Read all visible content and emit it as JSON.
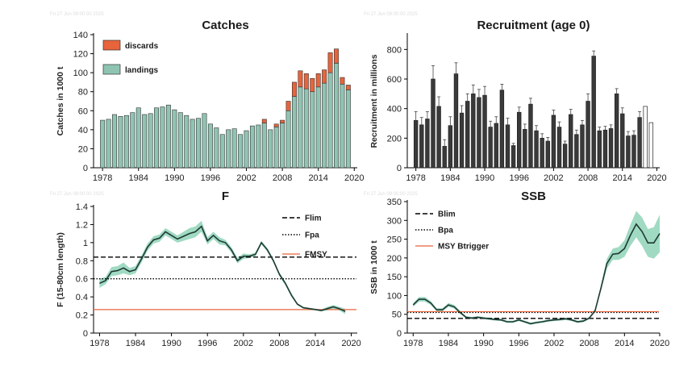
{
  "watermark": "Fri 27 Jun 09:00:00 2025",
  "chart_data": [
    {
      "id": "catches",
      "type": "bar",
      "title": "Catches",
      "ylabel": "Catches in 1000 t",
      "xlim": [
        1976.5,
        2020.5
      ],
      "ylim": [
        0,
        140
      ],
      "yticks": [
        0,
        20,
        40,
        60,
        80,
        100,
        120,
        140
      ],
      "xticks": [
        1978,
        1984,
        1990,
        1996,
        2002,
        2008,
        2014,
        2020
      ],
      "legend": "top-left",
      "colors": {
        "landings": "#8fc4b3",
        "discards": "#e8643a"
      },
      "x": [
        1978,
        1979,
        1980,
        1981,
        1982,
        1983,
        1984,
        1985,
        1986,
        1987,
        1988,
        1989,
        1990,
        1991,
        1992,
        1993,
        1994,
        1995,
        1996,
        1997,
        1998,
        1999,
        2000,
        2001,
        2002,
        2003,
        2004,
        2005,
        2006,
        2007,
        2008,
        2009,
        2010,
        2011,
        2012,
        2013,
        2014,
        2015,
        2016,
        2017,
        2018,
        2019
      ],
      "series": [
        {
          "name": "landings",
          "values": [
            50,
            51,
            56,
            54,
            55,
            58,
            63,
            56,
            57,
            63,
            64,
            66,
            61,
            58,
            55,
            51,
            52,
            57,
            46,
            42,
            35,
            40,
            41,
            35,
            39,
            44,
            45,
            47,
            40,
            43,
            47,
            60,
            75,
            85,
            83,
            80,
            85,
            89,
            100,
            110,
            88,
            82
          ]
        },
        {
          "name": "discards",
          "values": [
            0,
            0,
            0,
            0,
            0,
            0,
            0,
            0,
            0,
            0,
            0,
            0,
            0,
            0,
            0,
            0,
            0,
            0,
            0,
            0,
            0,
            0,
            0,
            0,
            0,
            0,
            0,
            4,
            0,
            3,
            3,
            10,
            15,
            17,
            16,
            14,
            14,
            14,
            21,
            15,
            7,
            5
          ]
        }
      ]
    },
    {
      "id": "recruitment",
      "type": "bar",
      "title": "Recruitment (age 0)",
      "ylabel": "Recruitment in millions",
      "xlim": [
        1976.5,
        2020.5
      ],
      "ylim": [
        0,
        900
      ],
      "yticks": [
        0,
        200,
        400,
        600,
        800
      ],
      "xticks": [
        1978,
        1984,
        1990,
        1996,
        2002,
        2008,
        2014,
        2020
      ],
      "colors": {
        "estimated": "#3a3a3a"
      },
      "x": [
        1978,
        1979,
        1980,
        1981,
        1982,
        1983,
        1984,
        1985,
        1986,
        1987,
        1988,
        1989,
        1990,
        1991,
        1992,
        1993,
        1994,
        1995,
        1996,
        1997,
        1998,
        1999,
        2000,
        2001,
        2002,
        2003,
        2004,
        2005,
        2006,
        2007,
        2008,
        2009,
        2010,
        2011,
        2012,
        2013,
        2014,
        2015,
        2016,
        2017,
        2018,
        2019
      ],
      "values": [
        320,
        290,
        330,
        600,
        415,
        145,
        285,
        635,
        370,
        450,
        500,
        475,
        490,
        275,
        300,
        525,
        290,
        150,
        375,
        260,
        430,
        250,
        200,
        180,
        355,
        275,
        160,
        360,
        225,
        290,
        450,
        755,
        250,
        255,
        265,
        500,
        365,
        215,
        220,
        340,
        415,
        305
      ],
      "upper": [
        380,
        340,
        380,
        690,
        480,
        190,
        345,
        710,
        420,
        500,
        560,
        530,
        550,
        315,
        345,
        565,
        335,
        165,
        410,
        295,
        470,
        285,
        230,
        205,
        390,
        310,
        180,
        395,
        255,
        320,
        500,
        790,
        275,
        280,
        290,
        535,
        405,
        245,
        250,
        380,
        485,
        305
      ],
      "assumed_from_year": 2018,
      "assumed_values": [
        305,
        305,
        305
      ]
    },
    {
      "id": "F",
      "type": "line",
      "title": "F",
      "ylabel": "F (15-80cm length)",
      "xlim": [
        1977,
        2021
      ],
      "ylim": [
        0,
        1.4
      ],
      "yticks": [
        0,
        0.2,
        0.4,
        0.6,
        0.8,
        1.0,
        1.2,
        1.4
      ],
      "ytick_labels": [
        "0",
        "0.2",
        "0.4",
        "0.6",
        "0.8",
        "1",
        "1.2",
        "1.4"
      ],
      "xticks": [
        1978,
        1984,
        1990,
        1996,
        2002,
        2008,
        2014,
        2020
      ],
      "legend": "top-right",
      "colors": {
        "line": "#1f3a33",
        "band": "#8fd3b9",
        "fmsy": "#e8643a"
      },
      "x": [
        1978,
        1979,
        1980,
        1981,
        1982,
        1983,
        1984,
        1985,
        1986,
        1987,
        1988,
        1989,
        1990,
        1991,
        1992,
        1993,
        1994,
        1995,
        1996,
        1997,
        1998,
        1999,
        2000,
        2001,
        2002,
        2003,
        2004,
        2005,
        2006,
        2007,
        2008,
        2009,
        2010,
        2011,
        2012,
        2013,
        2014,
        2015,
        2016,
        2017,
        2018,
        2019
      ],
      "values": [
        0.55,
        0.58,
        0.68,
        0.69,
        0.72,
        0.68,
        0.7,
        0.82,
        0.95,
        1.03,
        1.05,
        1.12,
        1.08,
        1.04,
        1.07,
        1.1,
        1.12,
        1.18,
        1.02,
        1.08,
        1.02,
        1.0,
        0.92,
        0.8,
        0.85,
        0.85,
        0.87,
        1.0,
        0.92,
        0.8,
        0.65,
        0.55,
        0.42,
        0.32,
        0.28,
        0.27,
        0.26,
        0.25,
        0.27,
        0.29,
        0.27,
        0.24
      ],
      "lower": [
        0.5,
        0.54,
        0.63,
        0.64,
        0.66,
        0.64,
        0.66,
        0.78,
        0.91,
        0.99,
        1.01,
        1.08,
        1.04,
        1.0,
        1.02,
        1.04,
        1.06,
        1.12,
        0.98,
        1.04,
        0.98,
        0.97,
        0.89,
        0.77,
        0.82,
        0.83,
        0.85,
        0.98,
        0.9,
        0.78,
        0.63,
        0.53,
        0.4,
        0.31,
        0.27,
        0.26,
        0.25,
        0.24,
        0.25,
        0.27,
        0.25,
        0.21
      ],
      "upper": [
        0.6,
        0.62,
        0.73,
        0.74,
        0.78,
        0.72,
        0.74,
        0.86,
        0.99,
        1.07,
        1.09,
        1.16,
        1.12,
        1.08,
        1.12,
        1.16,
        1.18,
        1.24,
        1.06,
        1.12,
        1.06,
        1.03,
        0.95,
        0.83,
        0.88,
        0.87,
        0.89,
        1.02,
        0.94,
        0.82,
        0.67,
        0.57,
        0.44,
        0.33,
        0.29,
        0.28,
        0.27,
        0.26,
        0.29,
        0.31,
        0.29,
        0.27
      ],
      "reference": [
        {
          "name": "Flim",
          "value": 0.84,
          "style": "dashed",
          "color": "#000000"
        },
        {
          "name": "Fpa",
          "value": 0.6,
          "style": "dotted",
          "color": "#000000"
        },
        {
          "name": "FMSY",
          "value": 0.26,
          "style": "solid",
          "color": "#e8643a"
        }
      ]
    },
    {
      "id": "SSB",
      "type": "line",
      "title": "SSB",
      "ylabel": "SSB in 1000 t",
      "xlim": [
        1977,
        2020
      ],
      "ylim": [
        0,
        350
      ],
      "yticks": [
        0,
        50,
        100,
        150,
        200,
        250,
        300,
        350
      ],
      "xticks": [
        1978,
        1984,
        1990,
        1996,
        2002,
        2008,
        2014,
        2020
      ],
      "legend": "top-left",
      "colors": {
        "line": "#1f3a33",
        "band": "#8fd3b9",
        "msy": "#e8643a"
      },
      "x": [
        1978,
        1979,
        1980,
        1981,
        1982,
        1983,
        1984,
        1985,
        1986,
        1987,
        1988,
        1989,
        1990,
        1991,
        1992,
        1993,
        1994,
        1995,
        1996,
        1997,
        1998,
        1999,
        2000,
        2001,
        2002,
        2003,
        2004,
        2005,
        2006,
        2007,
        2008,
        2009,
        2010,
        2011,
        2012,
        2013,
        2014,
        2015,
        2016,
        2017,
        2018,
        2019,
        2020
      ],
      "values": [
        75,
        90,
        90,
        80,
        62,
        62,
        75,
        70,
        55,
        42,
        40,
        42,
        40,
        38,
        36,
        35,
        30,
        30,
        35,
        30,
        25,
        28,
        30,
        33,
        35,
        36,
        38,
        35,
        30,
        32,
        40,
        60,
        120,
        185,
        210,
        212,
        225,
        260,
        290,
        270,
        240,
        240,
        265
      ],
      "lower": [
        70,
        84,
        84,
        75,
        58,
        58,
        70,
        65,
        51,
        39,
        37,
        39,
        37,
        35,
        33,
        32,
        27,
        27,
        32,
        27,
        22,
        25,
        27,
        30,
        32,
        33,
        35,
        32,
        27,
        29,
        37,
        56,
        112,
        172,
        195,
        195,
        203,
        232,
        255,
        232,
        203,
        198,
        215
      ],
      "upper": [
        80,
        96,
        96,
        85,
        66,
        66,
        80,
        75,
        59,
        45,
        43,
        45,
        43,
        41,
        39,
        38,
        33,
        33,
        38,
        33,
        28,
        31,
        33,
        36,
        38,
        39,
        41,
        38,
        33,
        35,
        43,
        64,
        128,
        198,
        225,
        229,
        247,
        288,
        325,
        308,
        277,
        282,
        315
      ],
      "reference": [
        {
          "name": "Blim",
          "value": 39,
          "style": "dashed",
          "color": "#000000"
        },
        {
          "name": "Bpa",
          "value": 55,
          "style": "dotted",
          "color": "#000000"
        },
        {
          "name": "MSY Btrigger",
          "value": 57,
          "style": "solid",
          "color": "#e8643a"
        }
      ]
    }
  ]
}
